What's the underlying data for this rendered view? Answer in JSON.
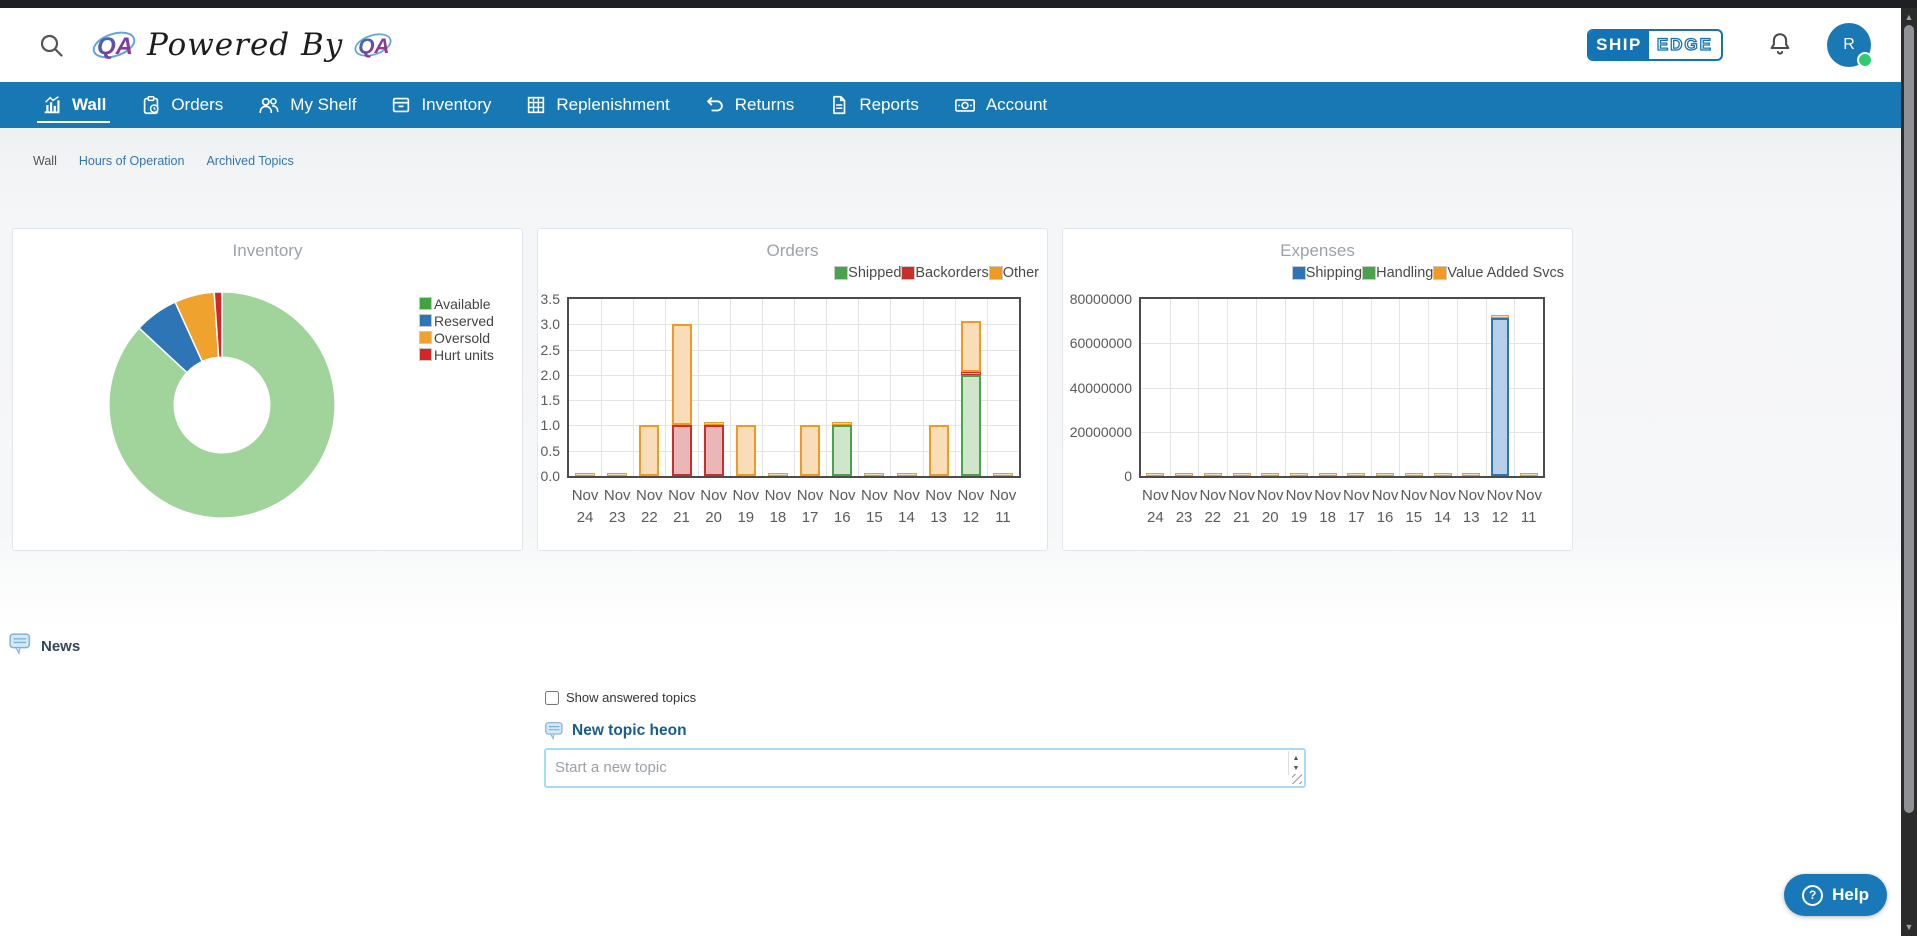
{
  "header": {
    "brand": {
      "qa": "QA",
      "powered_by": "Powered By"
    },
    "shipedge": {
      "left": "SHIP",
      "right": "EDGE"
    },
    "avatar_initial": "R"
  },
  "nav": {
    "items": [
      {
        "label": "Wall",
        "icon": "chart-icon",
        "active": true
      },
      {
        "label": "Orders",
        "icon": "clipboard-clock-icon",
        "active": false
      },
      {
        "label": "My Shelf",
        "icon": "people-icon",
        "active": false
      },
      {
        "label": "Inventory",
        "icon": "box-icon",
        "active": false
      },
      {
        "label": "Replenishment",
        "icon": "grid-icon",
        "active": false
      },
      {
        "label": "Returns",
        "icon": "undo-icon",
        "active": false
      },
      {
        "label": "Reports",
        "icon": "document-icon",
        "active": false
      },
      {
        "label": "Account",
        "icon": "banknote-icon",
        "active": false
      }
    ]
  },
  "breadcrumbs": [
    {
      "label": "Wall",
      "link": false
    },
    {
      "label": "Hours of Operation",
      "link": true
    },
    {
      "label": "Archived Topics",
      "link": true
    }
  ],
  "chart_data": [
    {
      "type": "pie",
      "title": "Inventory",
      "donut": true,
      "legend_position": "right",
      "labels": [
        "Available",
        "Reserved",
        "Oversold",
        "Hurt units"
      ],
      "values": [
        86.9,
        6.3,
        5.7,
        1.1
      ],
      "slice_colors": [
        "#a0d49b",
        "#2e75b6",
        "#f0a22f",
        "#d32727"
      ],
      "legend_colors": [
        "#3fa43f",
        "#2e75b6",
        "#f0a22f",
        "#d32727"
      ]
    },
    {
      "type": "bar",
      "stacked": true,
      "title": "Orders",
      "grid": true,
      "legend_position": "top-right",
      "categories": [
        "Nov 24",
        "Nov 23",
        "Nov 22",
        "Nov 21",
        "Nov 20",
        "Nov 19",
        "Nov 18",
        "Nov 17",
        "Nov 16",
        "Nov 15",
        "Nov 14",
        "Nov 13",
        "Nov 12",
        "Nov 11"
      ],
      "series": [
        {
          "name": "Shipped",
          "border": "#4aa34a",
          "fill": "#cfe6cb",
          "values": [
            0,
            0,
            0,
            0,
            0,
            0,
            0,
            0,
            1,
            0,
            0,
            0,
            2,
            0
          ]
        },
        {
          "name": "Backorders",
          "border": "#c9302c",
          "fill": "#eab6b6",
          "values": [
            0,
            0,
            0,
            1,
            1,
            0,
            0,
            0,
            0,
            0,
            0,
            0,
            0.02,
            0
          ]
        },
        {
          "name": "Other",
          "border": "#ef9a23",
          "fill": "#f8ddb8",
          "values": [
            0.02,
            0.02,
            1,
            2,
            0.02,
            1,
            0.02,
            1,
            0.02,
            0.02,
            0.02,
            1,
            1,
            0.02
          ]
        }
      ],
      "ylim": [
        0,
        3.5
      ],
      "ytick_values": [
        0,
        0.5,
        1,
        1.5,
        2,
        2.5,
        3,
        3.5
      ],
      "ytick_labels": [
        "0.0",
        "0.5",
        "1.0",
        "1.5",
        "2.0",
        "2.5",
        "3.0",
        "3.5"
      ]
    },
    {
      "type": "bar",
      "stacked": true,
      "title": "Expenses",
      "grid": true,
      "legend_position": "top-right",
      "categories": [
        "Nov 24",
        "Nov 23",
        "Nov 22",
        "Nov 21",
        "Nov 20",
        "Nov 19",
        "Nov 18",
        "Nov 17",
        "Nov 16",
        "Nov 15",
        "Nov 14",
        "Nov 13",
        "Nov 12",
        "Nov 11"
      ],
      "series": [
        {
          "name": "Shipping",
          "border": "#2e75b6",
          "fill": "#b7cfe9",
          "values": [
            0,
            0,
            0,
            0,
            0,
            0,
            0,
            0,
            0,
            0,
            0,
            0,
            71400000,
            0
          ]
        },
        {
          "name": "Handling",
          "border": "#4aa34a",
          "fill": "#cfe6cb",
          "values": [
            0,
            0,
            0,
            0,
            0,
            0,
            0,
            0,
            0,
            0,
            0,
            0,
            0,
            0
          ]
        },
        {
          "name": "Value Added Svcs",
          "border": "#ef9a23",
          "fill": "#f8ddb8",
          "values": [
            800000,
            800000,
            800000,
            800000,
            800000,
            800000,
            800000,
            800000,
            800000,
            800000,
            800000,
            800000,
            800000,
            800000
          ]
        }
      ],
      "ylim": [
        0,
        80000000
      ],
      "ytick_values": [
        0,
        20000000,
        40000000,
        60000000,
        80000000
      ],
      "ytick_labels": [
        "0",
        "20000000",
        "40000000",
        "60000000",
        "80000000"
      ]
    }
  ],
  "news": {
    "heading": "News"
  },
  "topics": {
    "show_answered_label": "Show answered topics",
    "new_topic_heading": "New topic heon",
    "textarea_placeholder": "Start a new topic"
  },
  "help_button": {
    "label": "Help"
  },
  "colors": {
    "accent_blue": "#1878b4",
    "link_blue": "#3276b1",
    "online_green": "#2ecc71"
  }
}
